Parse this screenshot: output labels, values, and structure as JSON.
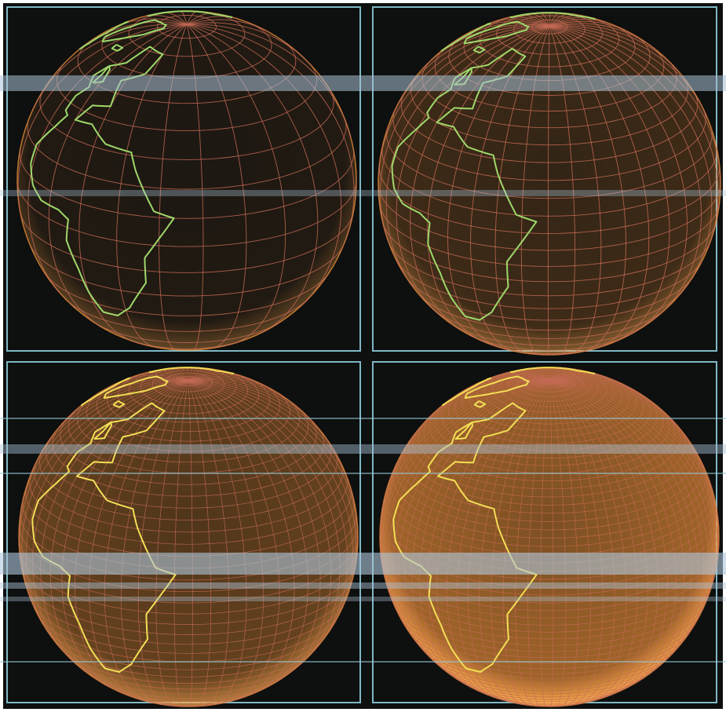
{
  "globes": [
    {
      "id": "grid-coarse",
      "grid_lat": 18,
      "grid_lon": 24
    },
    {
      "id": "grid-medium",
      "grid_lat": 30,
      "grid_lon": 40
    },
    {
      "id": "grid-fine",
      "grid_lat": 44,
      "grid_lon": 58
    },
    {
      "id": "grid-finest",
      "grid_lat": 64,
      "grid_lon": 84
    }
  ],
  "colors": {
    "background": "#0e0f0f",
    "panel_border": "#7fb8c4",
    "grid": "#c46a55",
    "coast_green": "#9fd86a",
    "coast_yellow": "#f3df55",
    "glow": "#ff9c3a"
  }
}
